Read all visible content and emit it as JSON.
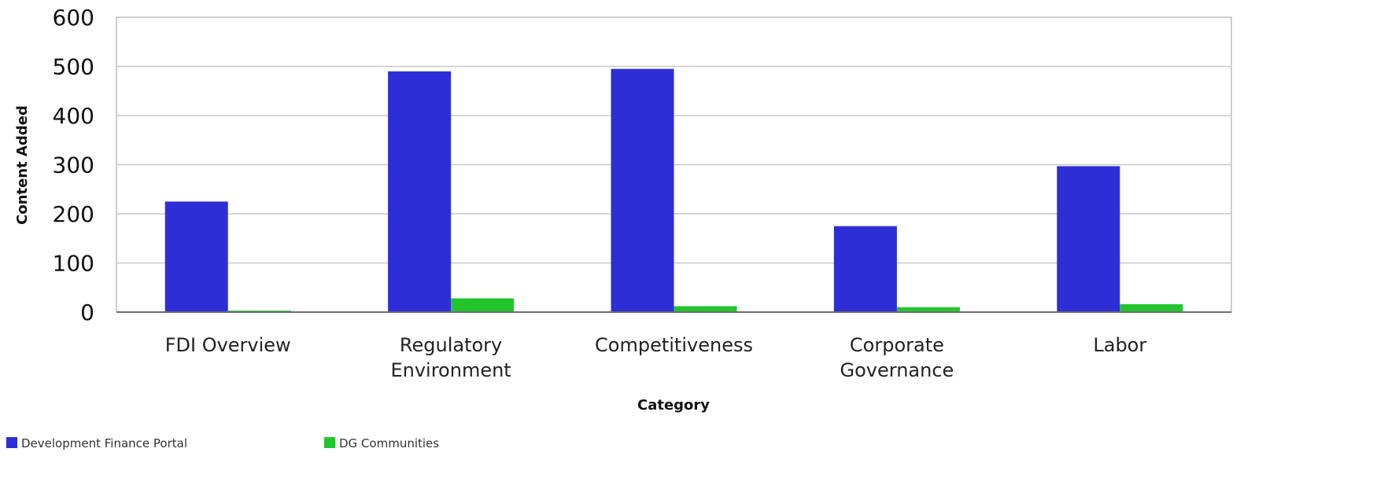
{
  "chart_data": {
    "type": "bar",
    "title": "",
    "xlabel": "Category",
    "ylabel": "Content Added",
    "ylim": [
      0,
      600
    ],
    "yticks": [
      0,
      100,
      200,
      300,
      400,
      500,
      600
    ],
    "grid": true,
    "legend_position": "bottom-left",
    "categories": [
      [
        "FDI Overview"
      ],
      [
        "Regulatory",
        "Environment"
      ],
      [
        "Competitiveness"
      ],
      [
        "Corporate",
        "Governance"
      ],
      [
        "Labor"
      ]
    ],
    "series": [
      {
        "name": "Development Finance Portal",
        "color": "#2e2ed6",
        "values": [
          225,
          490,
          495,
          175,
          297
        ]
      },
      {
        "name": "DG Communities",
        "color": "#22c52e",
        "values": [
          3,
          28,
          12,
          10,
          16
        ]
      }
    ]
  }
}
